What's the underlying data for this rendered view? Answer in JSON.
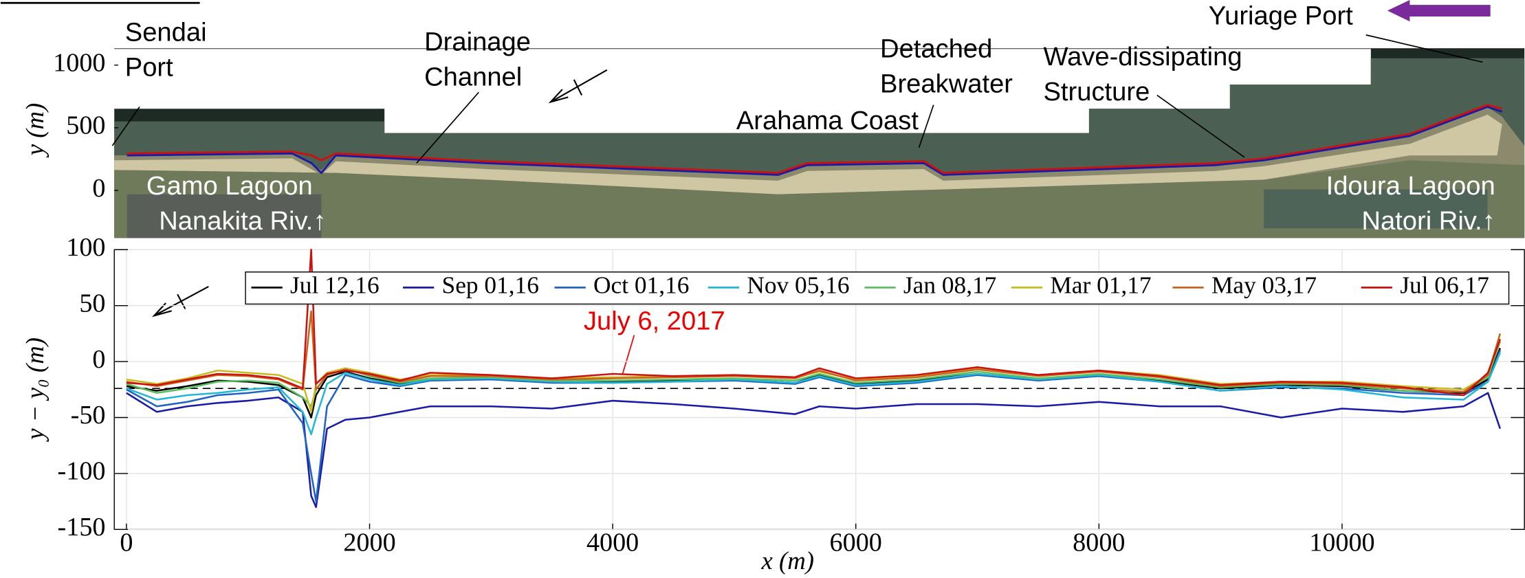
{
  "chart_data": [
    {
      "type": "map",
      "ylabel": "y (m)",
      "ylim": [
        -380,
        1132
      ],
      "yticks": [
        0,
        500,
        1000
      ],
      "annotations": [
        {
          "text": [
            "Sendai",
            "Port"
          ]
        },
        {
          "text": [
            "Drainage",
            "Channel"
          ]
        },
        {
          "text": [
            "Detached",
            "Breakwater"
          ]
        },
        {
          "text": [
            "Wave-dissipating",
            "Structure"
          ]
        },
        {
          "text": [
            "Arahama Coast"
          ]
        },
        {
          "text": [
            "Yuriage Port"
          ]
        },
        {
          "text": [
            "Gamo Lagoon",
            "Nanakita Riv.↑"
          ]
        },
        {
          "text": [
            "Idoura Lagoon",
            "Natori Riv.↑"
          ]
        }
      ]
    },
    {
      "type": "line",
      "xlabel": "x (m)",
      "ylabel": "y − y₀ (m)",
      "annotation": "July 6, 2017",
      "xlim": [
        -100,
        11500
      ],
      "xticks": [
        0,
        2000,
        4000,
        6000,
        8000,
        10000
      ],
      "ylim": [
        -150,
        100
      ],
      "yticks": [
        100,
        50,
        0,
        -50,
        -100,
        -150
      ],
      "hline": -24,
      "grid": true,
      "x": [
        0,
        250,
        500,
        750,
        1000,
        1250,
        1450,
        1520,
        1560,
        1650,
        1800,
        2000,
        2250,
        2500,
        3000,
        3500,
        4000,
        4500,
        5000,
        5500,
        5700,
        6000,
        6500,
        7000,
        7500,
        8000,
        8500,
        9000,
        9500,
        10000,
        10500,
        11000,
        11200,
        11300
      ],
      "series": [
        {
          "name": "Jul 12,16",
          "color": "#000000",
          "values": [
            -22,
            -26,
            -22,
            -17,
            -18,
            -21,
            -32,
            -50,
            -30,
            -14,
            -9,
            -15,
            -20,
            -16,
            -15,
            -18,
            -18,
            -17,
            -16,
            -19,
            -12,
            -20,
            -17,
            -11,
            -16,
            -12,
            -17,
            -24,
            -21,
            -22,
            -26,
            -28,
            -16,
            12
          ]
        },
        {
          "name": "Sep 01,16",
          "color": "#1a1aa6",
          "values": [
            -28,
            -45,
            -40,
            -37,
            -35,
            -32,
            -45,
            -120,
            -130,
            -60,
            -52,
            -50,
            -45,
            -40,
            -40,
            -42,
            -35,
            -38,
            -42,
            -47,
            -40,
            -42,
            -38,
            -38,
            -40,
            -36,
            -40,
            -40,
            -50,
            -42,
            -45,
            -40,
            -28,
            -60
          ]
        },
        {
          "name": "Oct 01,16",
          "color": "#1f64c4",
          "values": [
            -25,
            -40,
            -36,
            -30,
            -28,
            -25,
            -55,
            -100,
            -125,
            -40,
            -12,
            -18,
            -22,
            -17,
            -16,
            -19,
            -19,
            -18,
            -17,
            -20,
            -14,
            -22,
            -19,
            -12,
            -17,
            -13,
            -18,
            -26,
            -23,
            -24,
            -28,
            -30,
            -18,
            10
          ]
        },
        {
          "name": "Nov 05,16",
          "color": "#22b8d4",
          "values": [
            -24,
            -34,
            -30,
            -28,
            -25,
            -23,
            -45,
            -65,
            -50,
            -20,
            -10,
            -16,
            -21,
            -16,
            -15,
            -18,
            -19,
            -18,
            -16,
            -19,
            -13,
            -21,
            -18,
            -11,
            -16,
            -12,
            -18,
            -26,
            -22,
            -25,
            -32,
            -34,
            -18,
            8
          ]
        },
        {
          "name": "Jan 08,17",
          "color": "#5cc060",
          "values": [
            -20,
            -28,
            -24,
            -18,
            -17,
            -19,
            -32,
            -40,
            -25,
            -12,
            -6,
            -13,
            -19,
            -15,
            -14,
            -17,
            -17,
            -16,
            -15,
            -17,
            -11,
            -19,
            -16,
            -9,
            -15,
            -11,
            -16,
            -23,
            -20,
            -21,
            -26,
            -27,
            -14,
            18
          ]
        },
        {
          "name": "Mar 01,17",
          "color": "#c8bc1e",
          "values": [
            -16,
            -20,
            -15,
            -8,
            -10,
            -12,
            -20,
            -45,
            -20,
            -10,
            -6,
            -10,
            -16,
            -12,
            -12,
            -15,
            -14,
            -13,
            -12,
            -14,
            -9,
            -16,
            -13,
            -6,
            -12,
            -8,
            -12,
            -20,
            -18,
            -18,
            -22,
            -25,
            -12,
            20
          ]
        },
        {
          "name": "May 03,17",
          "color": "#c8651b",
          "values": [
            -18,
            -22,
            -17,
            -12,
            -13,
            -16,
            -25,
            45,
            -25,
            -12,
            -7,
            -12,
            -18,
            -13,
            -13,
            -16,
            -15,
            -14,
            -13,
            -15,
            -8,
            -17,
            -14,
            -7,
            -13,
            -9,
            -14,
            -22,
            -19,
            -20,
            -24,
            -27,
            -12,
            25
          ]
        },
        {
          "name": "Jul 06,17",
          "color": "#cc1111",
          "values": [
            -19,
            -21,
            -16,
            -11,
            -12,
            -15,
            -24,
            100,
            -20,
            -11,
            -8,
            -11,
            -17,
            -10,
            -12,
            -15,
            -11,
            -13,
            -12,
            -14,
            -6,
            -15,
            -12,
            -5,
            -12,
            -8,
            -13,
            -21,
            -18,
            -19,
            -23,
            -30,
            -10,
            20
          ]
        }
      ]
    }
  ]
}
